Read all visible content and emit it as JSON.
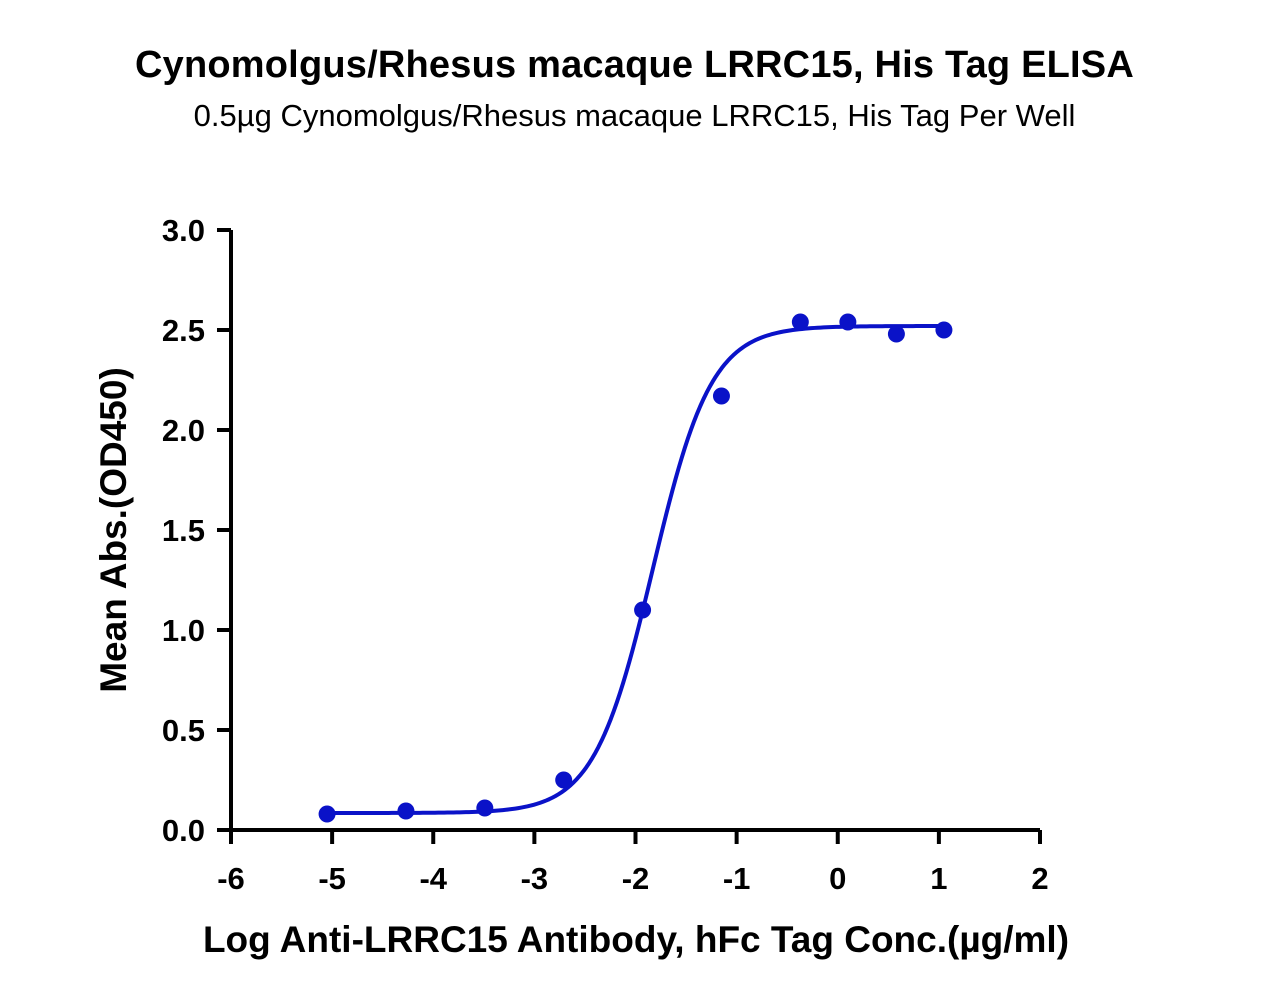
{
  "page": {
    "title": "Cynomolgus/Rhesus macaque LRRC15, His Tag ELISA",
    "subtitle": "0.5µg Cynomolgus/Rhesus macaque LRRC15, His Tag Per Well"
  },
  "colors": {
    "series": "#0A12C8",
    "axis": "#000000",
    "background": "#ffffff"
  },
  "chart_data": {
    "type": "scatter",
    "title": "Cynomolgus/Rhesus macaque LRRC15, His Tag ELISA",
    "subtitle": "0.5µg Cynomolgus/Rhesus macaque LRRC15, His Tag Per Well",
    "xlabel": "Log Anti-LRRC15 Antibody, hFc Tag Conc.(µg/ml)",
    "ylabel": "Mean Abs.(OD450)",
    "xlim": [
      -6,
      2
    ],
    "ylim": [
      0,
      3.0
    ],
    "x_ticks": [
      "-6",
      "-5",
      "-4",
      "-3",
      "-2",
      "-1",
      "0",
      "1",
      "2"
    ],
    "y_ticks": [
      "0.0",
      "0.5",
      "1.0",
      "1.5",
      "2.0",
      "2.5",
      "3.0"
    ],
    "grid": false,
    "legend": "none",
    "series": [
      {
        "points": [
          {
            "x": -5.05,
            "y": 0.08
          },
          {
            "x": -4.27,
            "y": 0.095
          },
          {
            "x": -3.49,
            "y": 0.11
          },
          {
            "x": -2.71,
            "y": 0.25
          },
          {
            "x": -1.93,
            "y": 1.1
          },
          {
            "x": -1.15,
            "y": 2.17
          },
          {
            "x": -0.37,
            "y": 2.54
          },
          {
            "x": 0.1,
            "y": 2.54
          },
          {
            "x": 0.58,
            "y": 2.48
          },
          {
            "x": 1.05,
            "y": 2.5
          }
        ],
        "fit": {
          "model": "4PL",
          "bottom": 0.085,
          "top": 2.52,
          "log_ec50": -1.83,
          "hill_slope": 1.5,
          "x_range": [
            -5.05,
            1.05
          ]
        }
      }
    ]
  }
}
